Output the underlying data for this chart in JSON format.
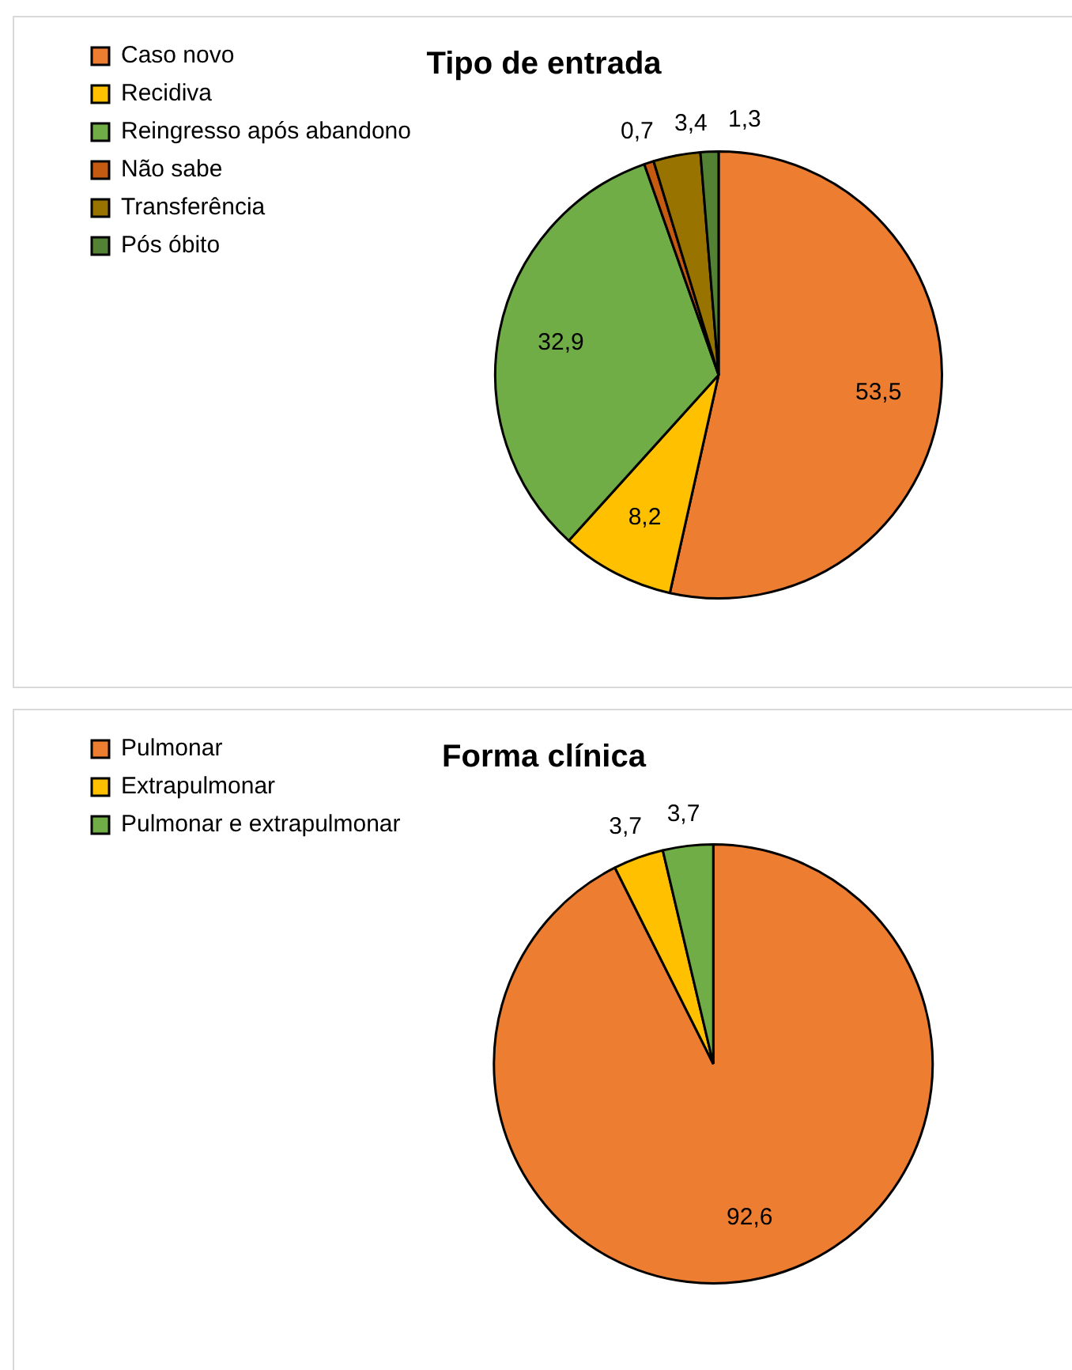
{
  "chart_data": [
    {
      "type": "pie",
      "title": "Tipo de entrada",
      "categories": [
        "Caso novo",
        "Recidiva",
        "Reingresso após abandono",
        "Não sabe",
        "Transferência",
        "Pós óbito"
      ],
      "values": [
        53.5,
        8.2,
        32.9,
        0.7,
        3.4,
        1.3
      ],
      "colors": [
        "#ed7d31",
        "#ffc000",
        "#70ad47",
        "#c55a11",
        "#997300",
        "#548235"
      ],
      "legend": "left",
      "value_labels": [
        "53,5",
        "8,2",
        "32,9",
        "0,7",
        "3,4",
        "1,3"
      ]
    },
    {
      "type": "pie",
      "title": "Forma clínica",
      "categories": [
        "Pulmonar",
        "Extrapulmonar",
        "Pulmonar e extrapulmonar"
      ],
      "values": [
        92.6,
        3.7,
        3.7
      ],
      "colors": [
        "#ed7d31",
        "#ffc000",
        "#70ad47"
      ],
      "legend": "left",
      "value_labels": [
        "92,6",
        "3,7",
        "3,7"
      ]
    }
  ]
}
